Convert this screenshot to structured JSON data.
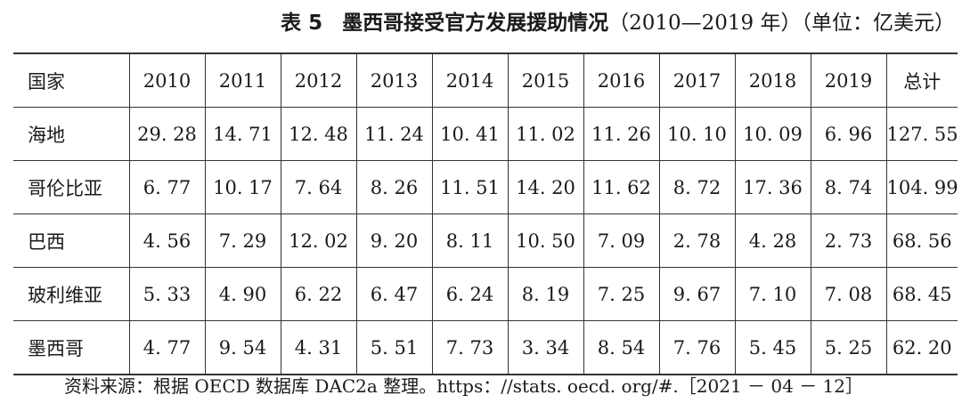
{
  "table_number": "表 5",
  "title": "墨西哥接受官方发展援助情况",
  "title_years": "（2010—2019 年）",
  "title_unit": "（单位：亿美元）",
  "columns": [
    "国家",
    "2010",
    "2011",
    "2012",
    "2013",
    "2014",
    "2015",
    "2016",
    "2017",
    "2018",
    "2019",
    "总计"
  ],
  "rows": [
    [
      "海地",
      "29. 28",
      "14. 71",
      "12. 48",
      "11. 24",
      "10. 41",
      "11. 02",
      "11. 26",
      "10. 10",
      "10. 09",
      "6. 96",
      "127. 55"
    ],
    [
      "哥伦比亚",
      "6. 77",
      "10. 17",
      "7. 64",
      "8. 26",
      "11. 51",
      "14. 20",
      "11. 62",
      "8. 72",
      "17. 36",
      "8. 74",
      "104. 99"
    ],
    [
      "巴西",
      "4. 56",
      "7. 29",
      "12. 02",
      "9. 20",
      "8. 11",
      "10. 50",
      "7. 09",
      "2. 78",
      "4. 28",
      "2. 73",
      "68. 56"
    ],
    [
      "玻利维亚",
      "5. 33",
      "4. 90",
      "6. 22",
      "6. 47",
      "6. 24",
      "8. 19",
      "7. 25",
      "9. 67",
      "7. 10",
      "7. 08",
      "68. 45"
    ],
    [
      "墨西哥",
      "4. 77",
      "9. 54",
      "4. 31",
      "5. 51",
      "7. 73",
      "3. 34",
      "8. 54",
      "7. 76",
      "5. 45",
      "5. 25",
      "62. 20"
    ]
  ],
  "source": "资料来源：根据 OECD 数据库 DAC2a 整理。https：//stats. oecd. org/#.［2021 － 04 － 12］"
}
